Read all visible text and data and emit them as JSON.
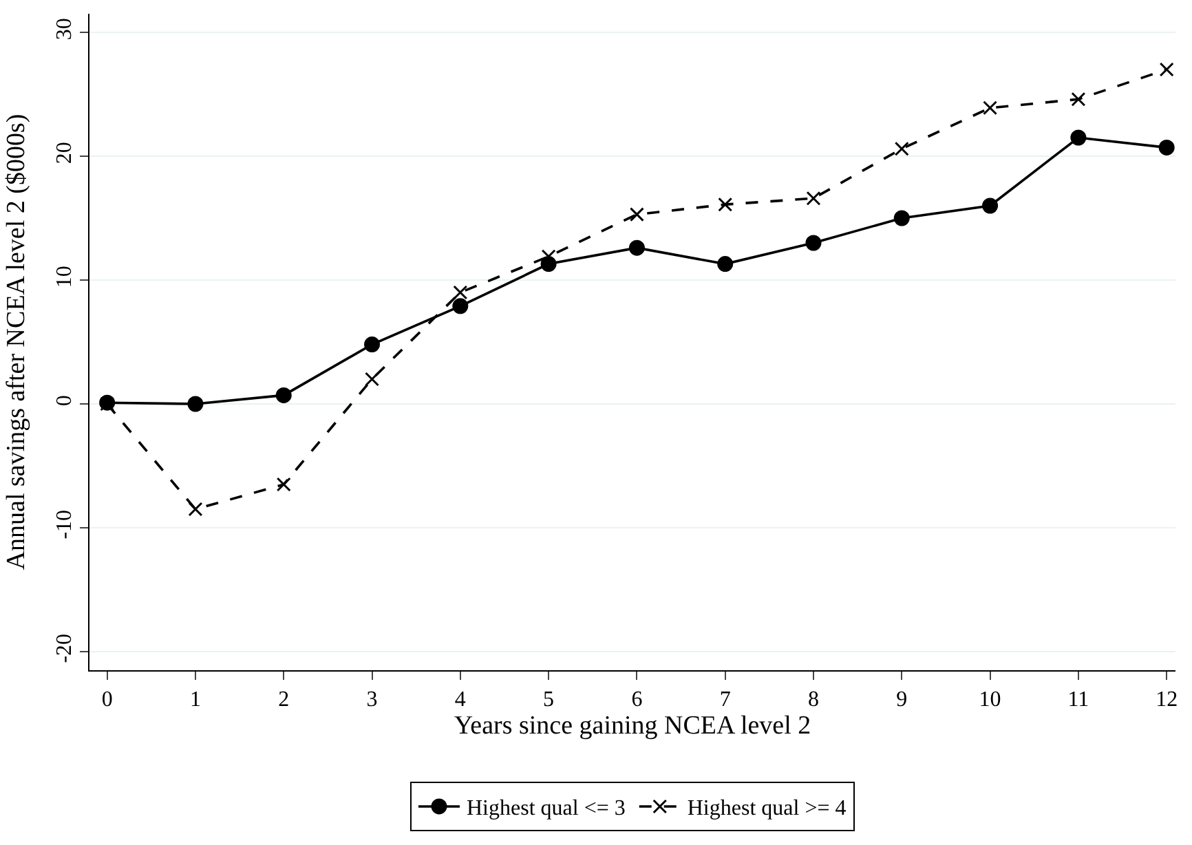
{
  "chart_data": {
    "type": "line",
    "xlabel": "Years since gaining NCEA level 2",
    "ylabel": "Annual savings after NCEA level 2 ($000s)",
    "x": [
      0,
      1,
      2,
      3,
      4,
      5,
      6,
      7,
      8,
      9,
      10,
      11,
      12
    ],
    "series": [
      {
        "name": "Highest qual <= 3",
        "color": "#000000",
        "marker": "circle",
        "line_style": "solid",
        "values": [
          0.1,
          0,
          0.7,
          4.8,
          7.9,
          11.3,
          12.6,
          11.3,
          13.0,
          15.0,
          16.0,
          21.5,
          20.7
        ]
      },
      {
        "name": "Highest qual >= 4",
        "color": "#000000",
        "marker": "cross",
        "line_style": "dashed",
        "values": [
          0,
          -8.5,
          -6.5,
          2.0,
          9.0,
          11.9,
          15.3,
          16.1,
          16.6,
          20.6,
          23.9,
          24.6,
          27.0
        ]
      }
    ],
    "xlim": [
      -0.2,
      12.1
    ],
    "xticks": [
      0,
      1,
      2,
      3,
      4,
      5,
      6,
      7,
      8,
      9,
      10,
      11,
      12
    ],
    "ylim": [
      -21.5,
      31.5
    ],
    "yticks": [
      -20,
      -10,
      0,
      10,
      20,
      30
    ],
    "grid": "y",
    "legend": "bottom"
  }
}
